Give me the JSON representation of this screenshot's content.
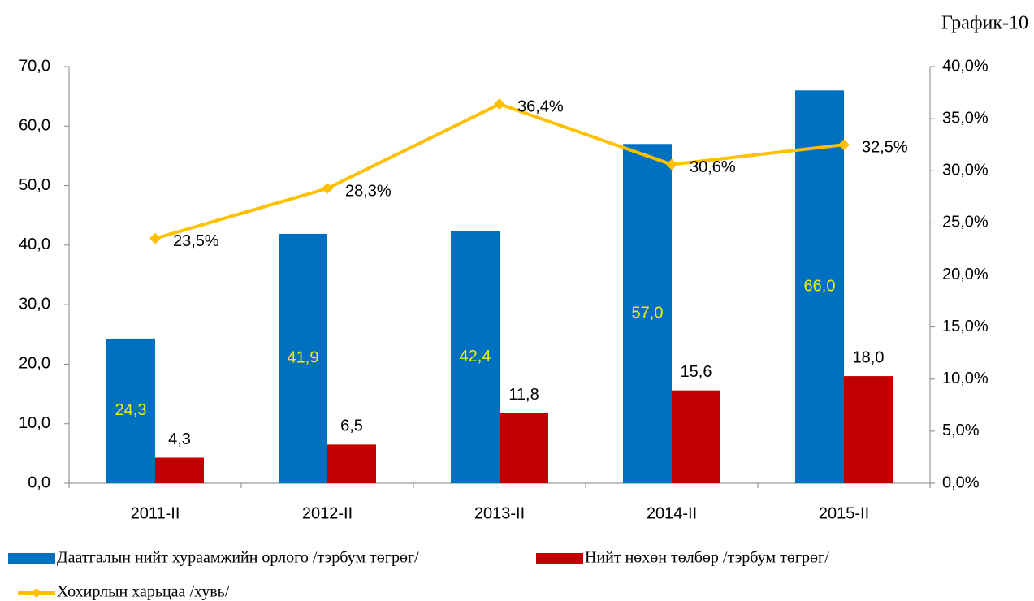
{
  "chart_data": {
    "type": "bar",
    "annotation": "График-10",
    "categories": [
      "2011-II",
      "2012-II",
      "2013-II",
      "2014-II",
      "2015-II"
    ],
    "series": [
      {
        "name": "Даатгалын нийт хураамжийн орлого /тэрбум төгрөг/",
        "type": "bar",
        "color": "#0070c0",
        "label_color": "#f2f200",
        "label_position": "center",
        "values": [
          24.3,
          41.9,
          42.4,
          57.0,
          66.0
        ],
        "value_labels": [
          "24,3",
          "41,9",
          "42,4",
          "57,0",
          "66,0"
        ]
      },
      {
        "name": "Нийт нөхөн төлбөр /тэрбум төгрөг/",
        "type": "bar",
        "color": "#c00000",
        "label_color": "#000000",
        "label_position": "above",
        "values": [
          4.3,
          6.5,
          11.8,
          15.6,
          18.0
        ],
        "value_labels": [
          "4,3",
          "6,5",
          "11,8",
          "15,6",
          "18,0"
        ]
      },
      {
        "name": "Хохирлын харьцаа /хувь/",
        "type": "line",
        "axis": "y2",
        "color": "#ffc000",
        "label_color": "#000000",
        "values": [
          23.5,
          28.3,
          36.4,
          30.6,
          32.5
        ],
        "value_labels": [
          "23,5%",
          "28,3%",
          "36,4%",
          "30,6%",
          "32,5%"
        ]
      }
    ],
    "ylim": [
      0,
      70
    ],
    "yticks": [
      {
        "value": 0,
        "label": "0,0"
      },
      {
        "value": 10,
        "label": "10,0"
      },
      {
        "value": 20,
        "label": "20,0"
      },
      {
        "value": 30,
        "label": "30,0"
      },
      {
        "value": 40,
        "label": "40,0"
      },
      {
        "value": 50,
        "label": "50,0"
      },
      {
        "value": 60,
        "label": "60,0"
      },
      {
        "value": 70,
        "label": "70,0"
      }
    ],
    "y2lim": [
      0,
      40
    ],
    "y2ticks": [
      {
        "value": 0,
        "label": "0,0%"
      },
      {
        "value": 5,
        "label": "5,0%"
      },
      {
        "value": 10,
        "label": "10,0%"
      },
      {
        "value": 15,
        "label": "15,0%"
      },
      {
        "value": 20,
        "label": "20,0%"
      },
      {
        "value": 25,
        "label": "25,0%"
      },
      {
        "value": 30,
        "label": "30,0%"
      },
      {
        "value": 35,
        "label": "35,0%"
      },
      {
        "value": 40,
        "label": "40,0%"
      }
    ],
    "grid": false,
    "legend": "bottom"
  }
}
